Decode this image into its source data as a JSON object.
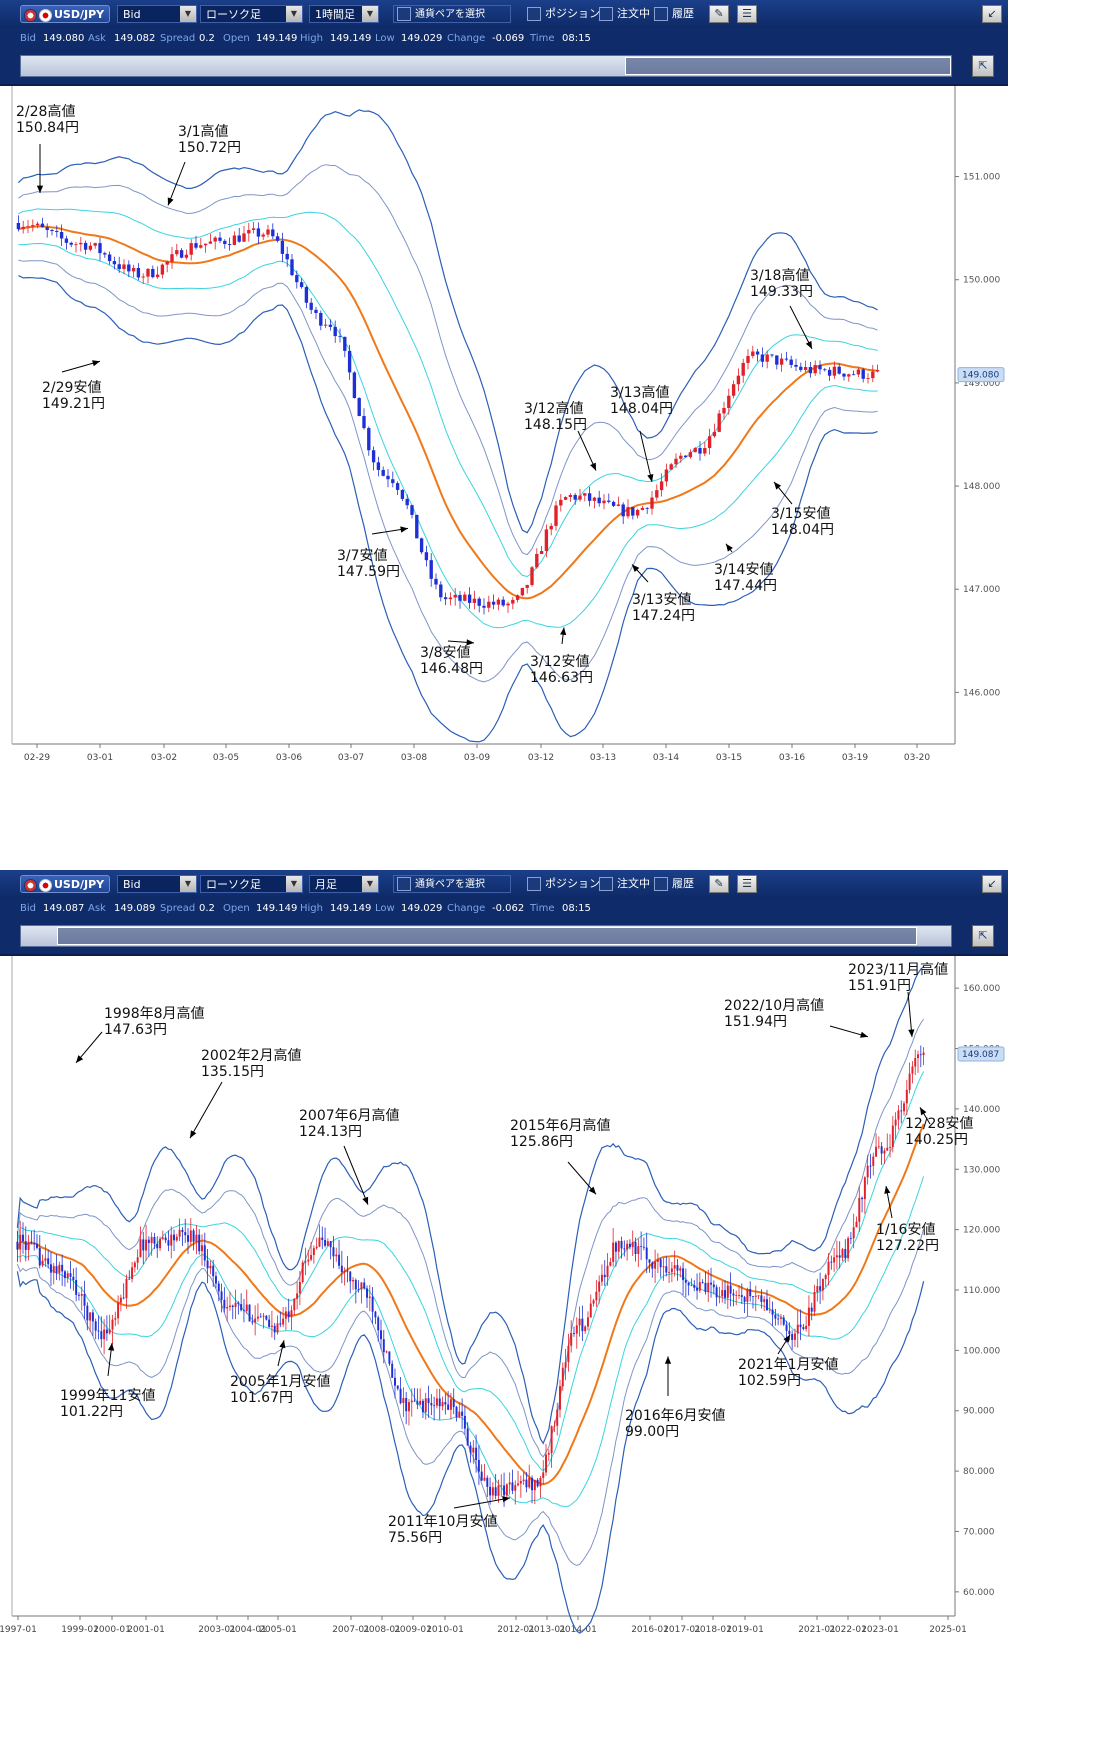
{
  "panels": [
    {
      "pair": "USD/JPY",
      "price_type": "Bid",
      "chart_style": "ローソク足",
      "timeframe": "1時間足",
      "select_pair": "通貨ペアを選択",
      "check_position": "ポジション",
      "check_orders": "注文中",
      "check_history": "履歴",
      "info": {
        "bid_l": "Bid",
        "bid": "149.080",
        "ask_l": "Ask",
        "ask": "149.082",
        "spread_l": "Spread",
        "spread": "0.2",
        "open_l": "Open",
        "open": "149.149",
        "high_l": "High",
        "high": "149.149",
        "low_l": "Low",
        "low": "149.029",
        "change_l": "Change",
        "change": "-0.069",
        "time_l": "Time",
        "time": "08:15"
      },
      "last_price": "149.080",
      "last_value": 149.08,
      "y_ticks": [
        "151.000",
        "150.000",
        "149.000",
        "148.000",
        "147.000",
        "146.000"
      ],
      "y_tick_values": [
        151,
        150,
        149,
        148,
        147,
        146
      ],
      "x_ticks": [
        "02-29",
        "03-01",
        "03-02",
        "03-05",
        "03-06",
        "03-07",
        "03-08",
        "03-09",
        "03-12",
        "03-13",
        "03-14",
        "03-15",
        "03-16",
        "03-19",
        "03-20"
      ],
      "annotations": [
        {
          "l1": "2/28高値",
          "l2": "150.84円"
        },
        {
          "l1": "3/1高値",
          "l2": "150.72円"
        },
        {
          "l1": "2/29安値",
          "l2": "149.21円"
        },
        {
          "l1": "3/7安値",
          "l2": "147.59円"
        },
        {
          "l1": "3/8安値",
          "l2": "146.48円"
        },
        {
          "l1": "3/12安値",
          "l2": "146.63円"
        },
        {
          "l1": "3/12高値",
          "l2": "148.15円"
        },
        {
          "l1": "3/13高値",
          "l2": "148.04円"
        },
        {
          "l1": "3/13安値",
          "l2": "147.24円"
        },
        {
          "l1": "3/14安値",
          "l2": "147.44円"
        },
        {
          "l1": "3/15安値",
          "l2": "148.04円"
        },
        {
          "l1": "3/18高値",
          "l2": "149.33円"
        }
      ]
    },
    {
      "pair": "USD/JPY",
      "price_type": "Bid",
      "chart_style": "ローソク足",
      "timeframe": "月足",
      "select_pair": "通貨ペアを選択",
      "check_position": "ポジション",
      "check_orders": "注文中",
      "check_history": "履歴",
      "info": {
        "bid_l": "Bid",
        "bid": "149.087",
        "ask_l": "Ask",
        "ask": "149.089",
        "spread_l": "Spread",
        "spread": "0.2",
        "open_l": "Open",
        "open": "149.149",
        "high_l": "High",
        "high": "149.149",
        "low_l": "Low",
        "low": "149.029",
        "change_l": "Change",
        "change": "-0.062",
        "time_l": "Time",
        "time": "08:15"
      },
      "last_price": "149.087",
      "last_value": 149.087,
      "y_ticks": [
        "160.000",
        "150.000",
        "140.000",
        "130.000",
        "120.000",
        "110.000",
        "100.000",
        "90.000",
        "80.000",
        "70.000",
        "60.000"
      ],
      "y_tick_values": [
        160,
        150,
        140,
        130,
        120,
        110,
        100,
        90,
        80,
        70,
        60
      ],
      "x_ticks": [
        "1997-01",
        "1999-01",
        "2000-01",
        "2001-01",
        "2003-01",
        "2004-01",
        "2005-01",
        "2007-01",
        "2008-01",
        "2009-01",
        "2010-01",
        "2012-01",
        "2013-01",
        "2014-01",
        "2016-01",
        "2017-01",
        "2018-01",
        "2019-01",
        "2021-01",
        "2022-01",
        "2023-01",
        "2025-01"
      ],
      "annotations": [
        {
          "l1": "1998年8月高値",
          "l2": "147.63円"
        },
        {
          "l1": "2002年2月高値",
          "l2": "135.15円"
        },
        {
          "l1": "2007年6月高値",
          "l2": "124.13円"
        },
        {
          "l1": "1999年11安値",
          "l2": "101.22円"
        },
        {
          "l1": "2005年1月安値",
          "l2": "101.67円"
        },
        {
          "l1": "2011年10月安値",
          "l2": "75.56円"
        },
        {
          "l1": "2015年6月高値",
          "l2": "125.86円"
        },
        {
          "l1": "2016年6月安値",
          "l2": "99.00円"
        },
        {
          "l1": "2021年1月安値",
          "l2": "102.59円"
        },
        {
          "l1": "2022/10月高値",
          "l2": "151.94円"
        },
        {
          "l1": "2023/11月高値",
          "l2": "151.91円"
        },
        {
          "l1": "12/28安値",
          "l2": "140.25円"
        },
        {
          "l1": "1/16安値",
          "l2": "127.22円"
        }
      ]
    }
  ],
  "colors": {
    "up": "#e0202a",
    "down": "#1e2fd6",
    "ma": "#f07818",
    "band1": "#3ad4e0",
    "band2": "#7f95c8",
    "band3": "#2b5fb8",
    "bg": "#0f2b6a"
  },
  "chart_data": [
    {
      "type": "candlestick",
      "title": "",
      "timeframe": "1時間足",
      "ylim": [
        145.5,
        151.8
      ],
      "x": [
        "02-29",
        "03-01",
        "03-02",
        "03-05",
        "03-06",
        "03-07",
        "03-08",
        "03-09",
        "03-12",
        "03-13",
        "03-14",
        "03-15",
        "03-16",
        "03-19",
        "03-20"
      ],
      "series": [
        {
          "name": "",
          "values": [
            150.55,
            150.35,
            150.05,
            150.35,
            150.45,
            149.6,
            148.1,
            146.9,
            146.85,
            147.9,
            147.75,
            148.35,
            149.25,
            149.12,
            149.08
          ]
        }
      ],
      "marked_points": [
        {
          "label": "2/28高値",
          "value": 150.84
        },
        {
          "label": "3/1高値",
          "value": 150.72
        },
        {
          "label": "2/29安値",
          "value": 149.21
        },
        {
          "label": "3/7安値",
          "value": 147.59
        },
        {
          "label": "3/8安値",
          "value": 146.48
        },
        {
          "label": "3/12安値",
          "value": 146.63
        },
        {
          "label": "3/12高値",
          "value": 148.15
        },
        {
          "label": "3/13高値",
          "value": 148.04
        },
        {
          "label": "3/13安値",
          "value": 147.24
        },
        {
          "label": "3/14安値",
          "value": 147.44
        },
        {
          "label": "3/15安値",
          "value": 148.04
        },
        {
          "label": "3/18高値",
          "value": 149.33
        }
      ]
    },
    {
      "type": "candlestick",
      "title": "",
      "timeframe": "月足",
      "ylim": [
        56,
        164
      ],
      "x": [
        "1997-01",
        "1999-01",
        "2000-01",
        "2001-01",
        "2003-01",
        "2004-01",
        "2005-01",
        "2007-01",
        "2008-01",
        "2009-01",
        "2010-01",
        "2012-01",
        "2013-01",
        "2014-01",
        "2016-01",
        "2017-01",
        "2018-01",
        "2019-01",
        "2021-01",
        "2022-01",
        "2023-01",
        "2025-01"
      ],
      "series": [
        {
          "name": "",
          "values": [
            118,
            113,
            103,
            118,
            119,
            107,
            104,
            118,
            110,
            91,
            91,
            77,
            78,
            104,
            118,
            114,
            110,
            109,
            103,
            115,
            133,
            149
          ]
        }
      ],
      "marked_points": [
        {
          "label": "1998年8月高値",
          "value": 147.63
        },
        {
          "label": "2002年2月高値",
          "value": 135.15
        },
        {
          "label": "2007年6月高値",
          "value": 124.13
        },
        {
          "label": "1999年11安値",
          "value": 101.22
        },
        {
          "label": "2005年1月安値",
          "value": 101.67
        },
        {
          "label": "2011年10月安値",
          "value": 75.56
        },
        {
          "label": "2015年6月高値",
          "value": 125.86
        },
        {
          "label": "2016年6月安値",
          "value": 99.0
        },
        {
          "label": "2021年1月安値",
          "value": 102.59
        },
        {
          "label": "2022/10月高値",
          "value": 151.94
        },
        {
          "label": "2023/11月高値",
          "value": 151.91
        },
        {
          "label": "12/28安値",
          "value": 140.25
        },
        {
          "label": "1/16安値",
          "value": 127.22
        }
      ]
    }
  ]
}
